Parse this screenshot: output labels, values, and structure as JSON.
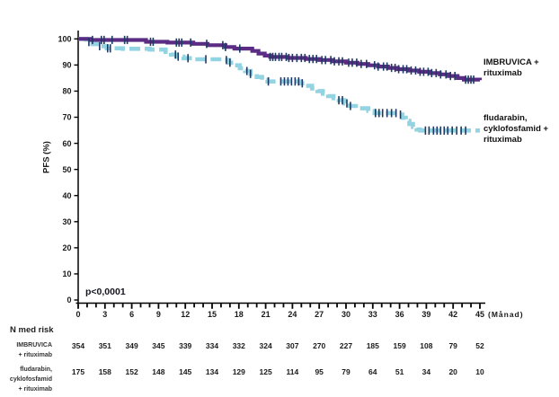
{
  "page": {
    "background": "#ffffff"
  },
  "chart_data": {
    "type": "line",
    "subtype": "kaplan_meier_step",
    "title": "",
    "ylabel": "PFS (%)",
    "x_unit_label": "(Månad)",
    "p_value": "p<0,0001",
    "xlim": [
      0,
      45
    ],
    "ylim": [
      0,
      100
    ],
    "grid": false,
    "x_ticks": [
      0,
      3,
      6,
      9,
      12,
      15,
      18,
      21,
      24,
      27,
      30,
      33,
      36,
      39,
      42,
      45
    ],
    "x_minor_tick_every": 1,
    "y_ticks": [
      0,
      10,
      20,
      30,
      40,
      50,
      60,
      70,
      80,
      90,
      100
    ],
    "axis_color": "#000000",
    "censor_tick_color": "#1F3864",
    "legend_position": "right",
    "series": [
      {
        "name": "IMBRUVICA + rituximab",
        "label_lines": [
          "IMBRUVICA +",
          "rituximab"
        ],
        "color": "#5B2C83",
        "line_style": "solid",
        "line_width": 4.2,
        "steps": [
          [
            0,
            100
          ],
          [
            1.4,
            99.6
          ],
          [
            7.6,
            98.9
          ],
          [
            10,
            98.6
          ],
          [
            12.9,
            98.1
          ],
          [
            14.5,
            97.6
          ],
          [
            16.5,
            96.9
          ],
          [
            17.5,
            96.3
          ],
          [
            19.5,
            95.4
          ],
          [
            20.2,
            94.4
          ],
          [
            20.9,
            93.6
          ],
          [
            21.5,
            93.1
          ],
          [
            23.5,
            92.7
          ],
          [
            25.5,
            92.3
          ],
          [
            27,
            91.9
          ],
          [
            28.5,
            91.4
          ],
          [
            30,
            90.9
          ],
          [
            31.3,
            90.4
          ],
          [
            32.5,
            89.9
          ],
          [
            33.6,
            89.4
          ],
          [
            34.7,
            88.9
          ],
          [
            35.8,
            88.4
          ],
          [
            37,
            87.9
          ],
          [
            38.2,
            87.4
          ],
          [
            39.4,
            86.9
          ],
          [
            40.5,
            86.4
          ],
          [
            41.5,
            85.8
          ],
          [
            42.5,
            85.0
          ],
          [
            43.2,
            84.4
          ],
          [
            45,
            84.2
          ]
        ],
        "censors": [
          1.6,
          2.6,
          2.9,
          3.8,
          5.2,
          5.5,
          8.1,
          8.4,
          11.0,
          11.3,
          11.6,
          12.6,
          14.4,
          16.2,
          16.5,
          18.1,
          21.5,
          21.8,
          22.1,
          22.5,
          22.8,
          23.3,
          23.6,
          24.0,
          24.5,
          25.0,
          25.4,
          25.9,
          26.3,
          26.7,
          27.3,
          27.7,
          28.3,
          28.7,
          29.2,
          29.6,
          30.3,
          30.7,
          31.2,
          31.7,
          32.3,
          33.2,
          33.6,
          34.2,
          34.6,
          35.1,
          35.5,
          35.9,
          36.4,
          36.8,
          37.3,
          37.8,
          38.3,
          38.7,
          39.2,
          39.6,
          40.1,
          40.6,
          41.2,
          41.7,
          42.2,
          43.4,
          43.7,
          44.0,
          44.3
        ]
      },
      {
        "name": "fludarabin, cyklofosfamid + rituximab",
        "label_lines": [
          "fludarabin,",
          "cyklofosfamid +",
          "rituximab"
        ],
        "color": "#93D4E3",
        "line_style": "dashed",
        "line_width": 4.6,
        "steps": [
          [
            0,
            100
          ],
          [
            0.9,
            98.8
          ],
          [
            1.6,
            98.0
          ],
          [
            2.4,
            97.2
          ],
          [
            3.2,
            96.4
          ],
          [
            5,
            96.2
          ],
          [
            8,
            95.9
          ],
          [
            9.8,
            95.0
          ],
          [
            10.4,
            94.0
          ],
          [
            11,
            93.2
          ],
          [
            11.8,
            92.6
          ],
          [
            13,
            92.2
          ],
          [
            16.3,
            91.9
          ],
          [
            16.9,
            90.9
          ],
          [
            17.5,
            89.9
          ],
          [
            18.1,
            88.8
          ],
          [
            18.7,
            87.7
          ],
          [
            19.3,
            86.6
          ],
          [
            20,
            85.4
          ],
          [
            20.6,
            84.3
          ],
          [
            21.2,
            83.7
          ],
          [
            24.8,
            83.0
          ],
          [
            25.5,
            82.0
          ],
          [
            26.2,
            81.0
          ],
          [
            26.8,
            80.0
          ],
          [
            27.4,
            79.0
          ],
          [
            28,
            78.1
          ],
          [
            28.6,
            77.3
          ],
          [
            29.2,
            76.5
          ],
          [
            29.8,
            75.3
          ],
          [
            30.4,
            74.3
          ],
          [
            31.5,
            73.4
          ],
          [
            32.5,
            72.4
          ],
          [
            33.2,
            71.6
          ],
          [
            35.9,
            71.0
          ],
          [
            36.3,
            69.8
          ],
          [
            36.7,
            68.6
          ],
          [
            37.1,
            67.4
          ],
          [
            37.5,
            66.3
          ],
          [
            37.9,
            65.3
          ],
          [
            38.3,
            64.9
          ],
          [
            45,
            64.9
          ]
        ],
        "censors": [
          1.2,
          2.4,
          3.3,
          3.6,
          10.9,
          11.2,
          12.3,
          14.3,
          16.6,
          17.0,
          18.9,
          19.3,
          21.3,
          22.7,
          23.1,
          23.5,
          23.9,
          24.3,
          24.7,
          25.1,
          29.2,
          29.6,
          30.1,
          30.5,
          33.3,
          33.7,
          34.1,
          34.6,
          35.1,
          35.6,
          36.1,
          38.9,
          39.3,
          39.8,
          40.2,
          40.6,
          41.0,
          41.4,
          41.9,
          42.4,
          42.9,
          43.4
        ]
      }
    ]
  },
  "risk_table": {
    "title": "N med risk",
    "time_points": [
      0,
      3,
      6,
      9,
      12,
      15,
      18,
      21,
      24,
      27,
      30,
      33,
      36,
      39,
      42,
      45
    ],
    "rows": [
      {
        "label_lines": [
          "IMBRUVICA",
          "+ rituximab"
        ],
        "values": [
          "354",
          "351",
          "349",
          "345",
          "339",
          "334",
          "332",
          "324",
          "307",
          "270",
          "227",
          "185",
          "159",
          "108",
          "79",
          "52"
        ]
      },
      {
        "label_lines": [
          "fludarabin,",
          "cyklofosfamid",
          "+ rituximab"
        ],
        "values": [
          "175",
          "158",
          "152",
          "148",
          "145",
          "134",
          "129",
          "125",
          "114",
          "95",
          "79",
          "64",
          "51",
          "34",
          "20",
          "10"
        ]
      }
    ]
  }
}
